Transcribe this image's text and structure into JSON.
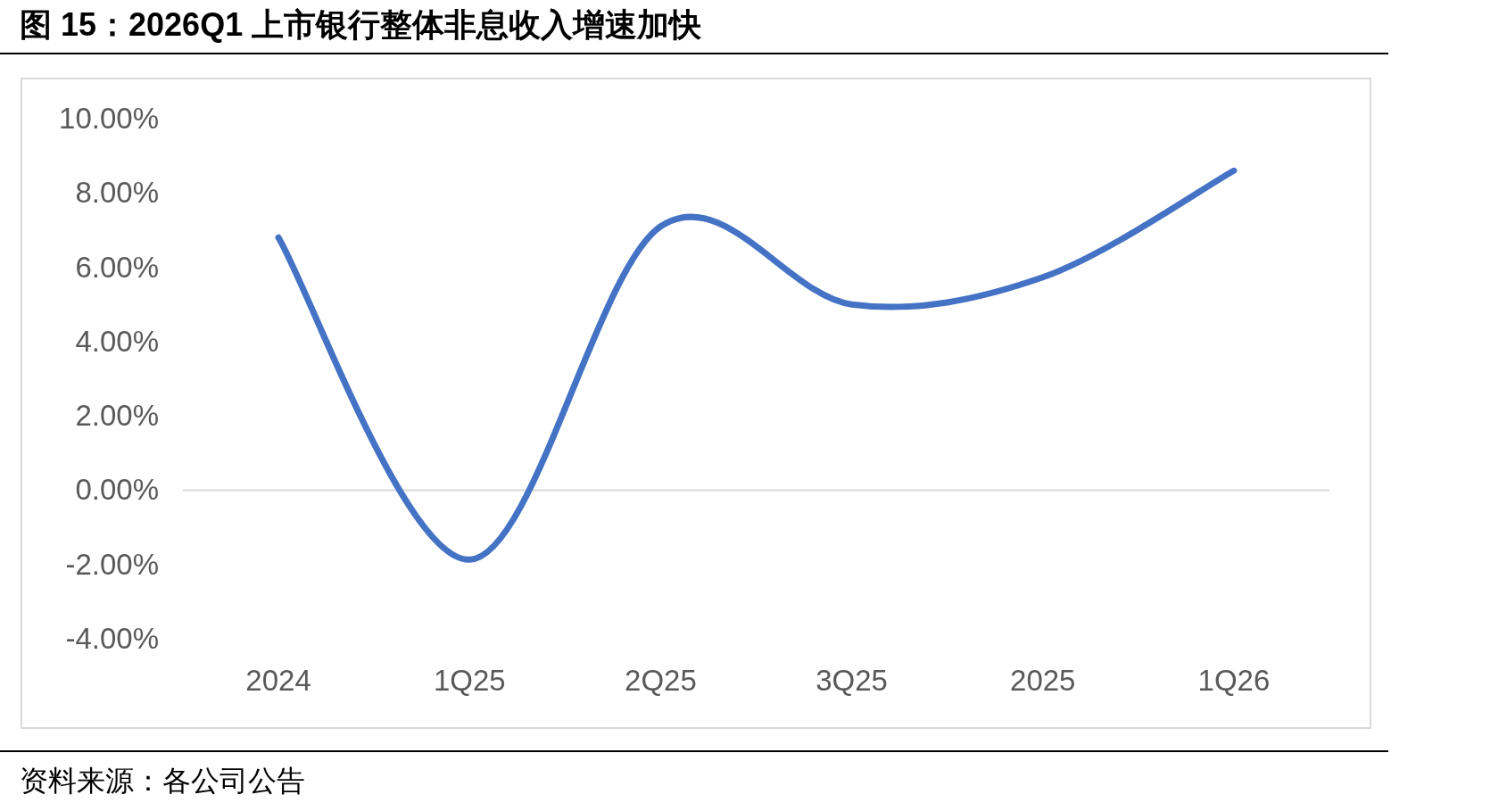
{
  "chart_data": {
    "type": "line",
    "title": "图 15：2026Q1 上市银行整体非息收入增速加快",
    "annotations": [
      "资料来源：各公司公告"
    ],
    "categories": [
      "2024",
      "1Q25",
      "2Q25",
      "3Q25",
      "2025",
      "1Q26"
    ],
    "series": [
      {
        "color": "#4472c4",
        "values": [
          6.8,
          -1.87,
          7.1,
          5.0,
          5.73,
          8.6
        ]
      }
    ],
    "ylim": [
      -4,
      10
    ],
    "yticks": [
      {
        "value": -4,
        "label": "-4.00%"
      },
      {
        "value": -2,
        "label": "-2.00%"
      },
      {
        "value": 0,
        "label": "0.00%"
      },
      {
        "value": 2,
        "label": "2.00%"
      },
      {
        "value": 4,
        "label": "4.00%"
      },
      {
        "value": 6,
        "label": "6.00%"
      },
      {
        "value": 8,
        "label": "8.00%"
      },
      {
        "value": 10,
        "label": "10.00%"
      }
    ]
  }
}
